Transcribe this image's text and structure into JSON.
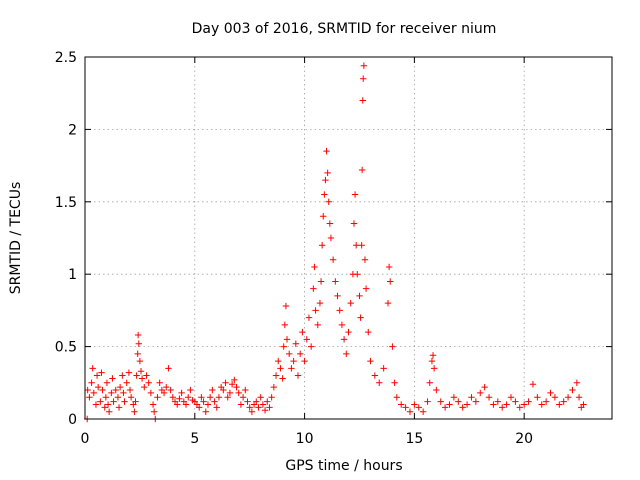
{
  "chart_data": {
    "type": "scatter",
    "title": "Day 003 of 2016, SRMTID for receiver nium",
    "xlabel": "GPS time / hours",
    "ylabel": "SRMTID / TECUs",
    "xlim": [
      0,
      24
    ],
    "ylim": [
      0,
      2.5
    ],
    "xticks": [
      0,
      5,
      10,
      15,
      20
    ],
    "yticks": [
      0,
      0.5,
      1,
      1.5,
      2,
      2.5
    ],
    "xtick_labels": [
      "0",
      "5",
      "10",
      "15",
      "20"
    ],
    "ytick_labels": [
      "0",
      "0.5",
      "1",
      "1.5",
      "2",
      "2.5"
    ],
    "grid": true,
    "marker": "plus",
    "color": "#ff0000",
    "series": [
      {
        "name": "SRMTID",
        "points": [
          [
            0.1,
            0.0
          ],
          [
            0.12,
            0.2
          ],
          [
            0.2,
            0.15
          ],
          [
            0.3,
            0.25
          ],
          [
            0.35,
            0.35
          ],
          [
            0.4,
            0.18
          ],
          [
            0.5,
            0.1
          ],
          [
            0.55,
            0.3
          ],
          [
            0.6,
            0.22
          ],
          [
            0.7,
            0.12
          ],
          [
            0.75,
            0.32
          ],
          [
            0.8,
            0.2
          ],
          [
            0.9,
            0.08
          ],
          [
            0.95,
            0.15
          ],
          [
            1.0,
            0.25
          ],
          [
            1.05,
            0.1
          ],
          [
            1.1,
            0.05
          ],
          [
            1.2,
            0.18
          ],
          [
            1.25,
            0.28
          ],
          [
            1.3,
            0.12
          ],
          [
            1.4,
            0.2
          ],
          [
            1.5,
            0.15
          ],
          [
            1.55,
            0.08
          ],
          [
            1.6,
            0.22
          ],
          [
            1.7,
            0.3
          ],
          [
            1.75,
            0.18
          ],
          [
            1.8,
            0.12
          ],
          [
            1.9,
            0.25
          ],
          [
            2.0,
            0.32
          ],
          [
            2.05,
            0.2
          ],
          [
            2.1,
            0.15
          ],
          [
            2.2,
            0.1
          ],
          [
            2.25,
            0.05
          ],
          [
            2.3,
            0.12
          ],
          [
            2.35,
            0.3
          ],
          [
            2.4,
            0.45
          ],
          [
            2.42,
            0.58
          ],
          [
            2.45,
            0.52
          ],
          [
            2.5,
            0.4
          ],
          [
            2.55,
            0.33
          ],
          [
            2.6,
            0.28
          ],
          [
            2.7,
            0.22
          ],
          [
            2.8,
            0.3
          ],
          [
            2.9,
            0.25
          ],
          [
            3.0,
            0.18
          ],
          [
            3.1,
            0.1
          ],
          [
            3.15,
            0.05
          ],
          [
            3.2,
            0.0
          ],
          [
            3.3,
            0.15
          ],
          [
            3.4,
            0.25
          ],
          [
            3.5,
            0.2
          ],
          [
            3.6,
            0.18
          ],
          [
            3.7,
            0.22
          ],
          [
            3.8,
            0.35
          ],
          [
            3.9,
            0.2
          ],
          [
            4.0,
            0.15
          ],
          [
            4.1,
            0.12
          ],
          [
            4.2,
            0.1
          ],
          [
            4.3,
            0.14
          ],
          [
            4.4,
            0.18
          ],
          [
            4.5,
            0.12
          ],
          [
            4.6,
            0.1
          ],
          [
            4.7,
            0.15
          ],
          [
            4.8,
            0.2
          ],
          [
            4.9,
            0.13
          ],
          [
            5.0,
            0.12
          ],
          [
            5.1,
            0.1
          ],
          [
            5.2,
            0.08
          ],
          [
            5.3,
            0.15
          ],
          [
            5.4,
            0.12
          ],
          [
            5.5,
            0.05
          ],
          [
            5.6,
            0.1
          ],
          [
            5.7,
            0.15
          ],
          [
            5.8,
            0.2
          ],
          [
            5.9,
            0.12
          ],
          [
            6.0,
            0.08
          ],
          [
            6.1,
            0.15
          ],
          [
            6.2,
            0.22
          ],
          [
            6.3,
            0.2
          ],
          [
            6.4,
            0.25
          ],
          [
            6.5,
            0.15
          ],
          [
            6.6,
            0.18
          ],
          [
            6.7,
            0.24
          ],
          [
            6.8,
            0.27
          ],
          [
            6.9,
            0.22
          ],
          [
            7.0,
            0.18
          ],
          [
            7.1,
            0.1
          ],
          [
            7.2,
            0.15
          ],
          [
            7.3,
            0.2
          ],
          [
            7.4,
            0.12
          ],
          [
            7.5,
            0.08
          ],
          [
            7.6,
            0.05
          ],
          [
            7.7,
            0.1
          ],
          [
            7.8,
            0.12
          ],
          [
            7.9,
            0.08
          ],
          [
            8.0,
            0.15
          ],
          [
            8.1,
            0.1
          ],
          [
            8.2,
            0.06
          ],
          [
            8.3,
            0.12
          ],
          [
            8.4,
            0.08
          ],
          [
            8.5,
            0.15
          ],
          [
            8.6,
            0.22
          ],
          [
            8.7,
            0.3
          ],
          [
            8.8,
            0.4
          ],
          [
            8.9,
            0.35
          ],
          [
            9.0,
            0.28
          ],
          [
            9.05,
            0.5
          ],
          [
            9.1,
            0.65
          ],
          [
            9.15,
            0.78
          ],
          [
            9.2,
            0.55
          ],
          [
            9.3,
            0.45
          ],
          [
            9.4,
            0.35
          ],
          [
            9.5,
            0.4
          ],
          [
            9.6,
            0.52
          ],
          [
            9.7,
            0.3
          ],
          [
            9.8,
            0.45
          ],
          [
            9.9,
            0.6
          ],
          [
            10.0,
            0.4
          ],
          [
            10.1,
            0.55
          ],
          [
            10.2,
            0.7
          ],
          [
            10.3,
            0.5
          ],
          [
            10.4,
            0.9
          ],
          [
            10.45,
            1.05
          ],
          [
            10.5,
            0.75
          ],
          [
            10.6,
            0.65
          ],
          [
            10.7,
            0.8
          ],
          [
            10.75,
            0.95
          ],
          [
            10.8,
            1.2
          ],
          [
            10.85,
            1.4
          ],
          [
            10.9,
            1.55
          ],
          [
            10.95,
            1.65
          ],
          [
            11.0,
            1.85
          ],
          [
            11.05,
            1.7
          ],
          [
            11.1,
            1.5
          ],
          [
            11.15,
            1.35
          ],
          [
            11.2,
            1.25
          ],
          [
            11.3,
            1.1
          ],
          [
            11.4,
            0.95
          ],
          [
            11.5,
            0.85
          ],
          [
            11.6,
            0.75
          ],
          [
            11.7,
            0.65
          ],
          [
            11.8,
            0.55
          ],
          [
            11.9,
            0.45
          ],
          [
            12.0,
            0.6
          ],
          [
            12.1,
            0.8
          ],
          [
            12.2,
            1.0
          ],
          [
            12.25,
            1.35
          ],
          [
            12.3,
            1.55
          ],
          [
            12.35,
            1.2
          ],
          [
            12.4,
            1.0
          ],
          [
            12.5,
            0.85
          ],
          [
            12.55,
            0.7
          ],
          [
            12.6,
            1.2
          ],
          [
            12.62,
            1.72
          ],
          [
            12.65,
            2.2
          ],
          [
            12.67,
            2.35
          ],
          [
            12.7,
            2.44
          ],
          [
            12.75,
            1.1
          ],
          [
            12.8,
            0.9
          ],
          [
            12.9,
            0.6
          ],
          [
            13.0,
            0.4
          ],
          [
            13.2,
            0.3
          ],
          [
            13.4,
            0.25
          ],
          [
            13.6,
            0.35
          ],
          [
            13.8,
            0.8
          ],
          [
            13.85,
            1.05
          ],
          [
            13.9,
            0.95
          ],
          [
            14.0,
            0.5
          ],
          [
            14.1,
            0.25
          ],
          [
            14.2,
            0.15
          ],
          [
            14.4,
            0.1
          ],
          [
            14.6,
            0.08
          ],
          [
            14.8,
            0.05
          ],
          [
            15.0,
            0.1
          ],
          [
            15.2,
            0.08
          ],
          [
            15.4,
            0.05
          ],
          [
            15.6,
            0.12
          ],
          [
            15.7,
            0.25
          ],
          [
            15.8,
            0.4
          ],
          [
            15.85,
            0.44
          ],
          [
            15.9,
            0.35
          ],
          [
            16.0,
            0.2
          ],
          [
            16.2,
            0.12
          ],
          [
            16.4,
            0.08
          ],
          [
            16.6,
            0.1
          ],
          [
            16.8,
            0.15
          ],
          [
            17.0,
            0.12
          ],
          [
            17.2,
            0.08
          ],
          [
            17.4,
            0.1
          ],
          [
            17.6,
            0.15
          ],
          [
            17.8,
            0.12
          ],
          [
            18.0,
            0.18
          ],
          [
            18.2,
            0.22
          ],
          [
            18.4,
            0.15
          ],
          [
            18.6,
            0.1
          ],
          [
            18.8,
            0.12
          ],
          [
            19.0,
            0.08
          ],
          [
            19.2,
            0.1
          ],
          [
            19.4,
            0.15
          ],
          [
            19.6,
            0.12
          ],
          [
            19.8,
            0.08
          ],
          [
            20.0,
            0.1
          ],
          [
            20.2,
            0.12
          ],
          [
            20.4,
            0.24
          ],
          [
            20.6,
            0.15
          ],
          [
            20.8,
            0.1
          ],
          [
            21.0,
            0.12
          ],
          [
            21.2,
            0.18
          ],
          [
            21.4,
            0.15
          ],
          [
            21.6,
            0.1
          ],
          [
            21.8,
            0.12
          ],
          [
            22.0,
            0.15
          ],
          [
            22.2,
            0.2
          ],
          [
            22.4,
            0.25
          ],
          [
            22.5,
            0.15
          ],
          [
            22.6,
            0.08
          ],
          [
            22.7,
            0.1
          ]
        ]
      }
    ]
  }
}
